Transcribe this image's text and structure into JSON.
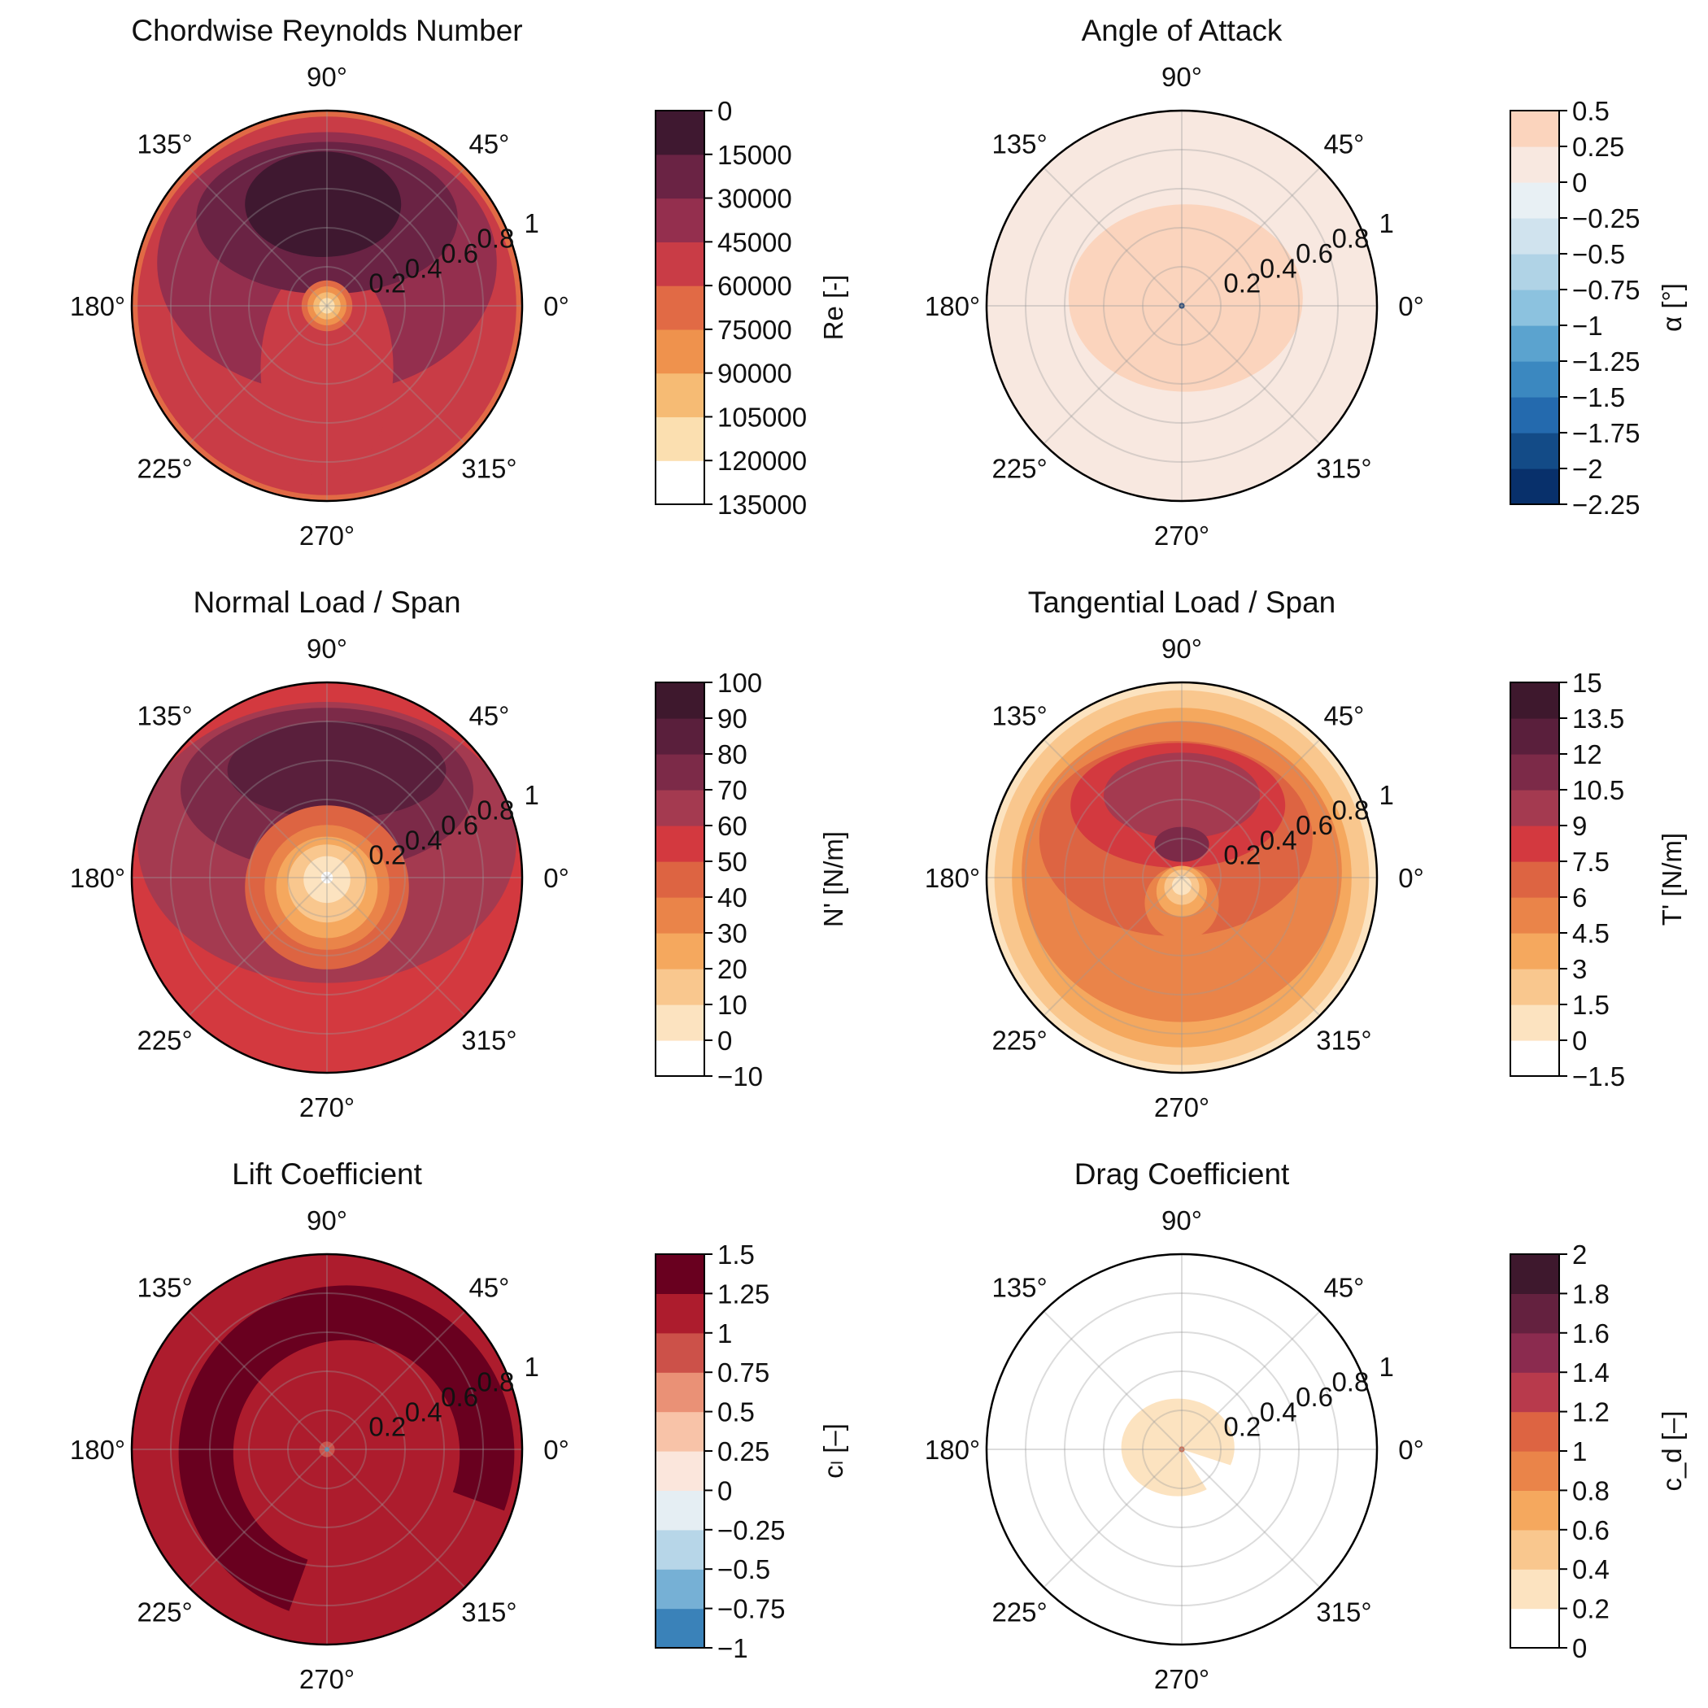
{
  "chart_data": [
    {
      "type": "polar-contour",
      "title": "Chordwise Reynolds Number",
      "angle_ticks": [
        "0°",
        "45°",
        "90°",
        "135°",
        "180°",
        "225°",
        "270°",
        "315°"
      ],
      "radial_ticks": [
        "0.2",
        "0.4",
        "0.6",
        "0.8",
        "1"
      ],
      "radial_values": [
        0.2,
        0.4,
        0.6,
        0.8,
        1.0
      ],
      "colorbar": {
        "label": "Re [-]",
        "ticks": [
          "0",
          "15000",
          "30000",
          "45000",
          "60000",
          "75000",
          "90000",
          "105000",
          "120000",
          "135000"
        ],
        "levels": [
          0,
          15000,
          30000,
          45000,
          60000,
          75000,
          90000,
          105000,
          120000,
          135000
        ],
        "colors": [
          "#ffffff",
          "#fbdfb0",
          "#f6bb74",
          "#ef924d",
          "#e16a45",
          "#c93c46",
          "#942f4e",
          "#6a2344",
          "#3f1830"
        ]
      },
      "regions": [
        {
          "level": 60000,
          "shape": "disk",
          "cx": 0,
          "cy": 0,
          "r": 1.0
        },
        {
          "level": 75000,
          "shape": "disk",
          "cx": 0,
          "cy": 0,
          "r": 0.97
        },
        {
          "level": 90000,
          "shape": "ellipse",
          "cx": 0,
          "cy": 0.22,
          "rx": 0.87,
          "ry": 0.67
        },
        {
          "level": 75000,
          "shape": "ellipse",
          "cx": 0,
          "cy": -0.32,
          "rx": 0.34,
          "ry": 0.56
        },
        {
          "level": 105000,
          "shape": "ellipse",
          "cx": 0,
          "cy": 0.45,
          "rx": 0.67,
          "ry": 0.39
        },
        {
          "level": 120000,
          "shape": "ellipse",
          "cx": -0.02,
          "cy": 0.52,
          "rx": 0.4,
          "ry": 0.27
        },
        {
          "level": 60000,
          "shape": "disk",
          "cx": 0,
          "cy": 0,
          "r": 0.13
        },
        {
          "level": 45000,
          "shape": "disk",
          "cx": 0,
          "cy": 0,
          "r": 0.1
        },
        {
          "level": 30000,
          "shape": "disk",
          "cx": 0,
          "cy": 0,
          "r": 0.07
        },
        {
          "level": 15000,
          "shape": "disk",
          "cx": 0,
          "cy": 0,
          "r": 0.04
        }
      ]
    },
    {
      "type": "polar-contour",
      "title": "Angle of Attack",
      "angle_ticks": [
        "0°",
        "45°",
        "90°",
        "135°",
        "180°",
        "225°",
        "270°",
        "315°"
      ],
      "radial_ticks": [
        "0.2",
        "0.4",
        "0.6",
        "0.8",
        "1"
      ],
      "radial_values": [
        0.2,
        0.4,
        0.6,
        0.8,
        1.0
      ],
      "colorbar": {
        "label": "α [°]",
        "ticks": [
          "0.5",
          "0.25",
          "0",
          "−0.25",
          "−0.5",
          "−0.75",
          "−1",
          "−1.25",
          "−1.5",
          "−1.75",
          "−2",
          "−2.25"
        ],
        "levels": [
          -2.25,
          -2.0,
          -1.75,
          -1.5,
          -1.25,
          -1.0,
          -0.75,
          -0.5,
          -0.25,
          0,
          0.25,
          0.5
        ],
        "colors": [
          "#08306b",
          "#134b87",
          "#246aae",
          "#3b88c0",
          "#5ba3cf",
          "#8cc2df",
          "#b0d3e6",
          "#d0e3ee",
          "#e8f0f4",
          "#f8e8e0",
          "#fbd4bd"
        ]
      },
      "regions": [
        {
          "level": 0,
          "shape": "disk",
          "cx": 0,
          "cy": 0,
          "r": 1.0
        },
        {
          "level": 0.25,
          "shape": "ellipse",
          "cx": 0.02,
          "cy": 0.04,
          "rx": 0.6,
          "ry": 0.48
        },
        {
          "level": -2.25,
          "shape": "disk",
          "cx": 0,
          "cy": 0,
          "r": 0.015
        }
      ]
    },
    {
      "type": "polar-contour",
      "title": "Normal Load / Span",
      "angle_ticks": [
        "0°",
        "45°",
        "90°",
        "135°",
        "180°",
        "225°",
        "270°",
        "315°"
      ],
      "radial_ticks": [
        "0.2",
        "0.4",
        "0.6",
        "0.8",
        "1"
      ],
      "radial_values": [
        0.2,
        0.4,
        0.6,
        0.8,
        1.0
      ],
      "colorbar": {
        "label": "N' [N/m]",
        "ticks": [
          "100",
          "90",
          "80",
          "70",
          "60",
          "50",
          "40",
          "30",
          "20",
          "10",
          "0",
          "−10"
        ],
        "levels": [
          -10,
          0,
          10,
          20,
          30,
          40,
          50,
          60,
          70,
          80,
          90,
          100
        ],
        "colors": [
          "#ffffff",
          "#fce3c0",
          "#f9c78e",
          "#f5a85e",
          "#ea8449",
          "#dd6442",
          "#d3393f",
          "#a43a50",
          "#7c2a48",
          "#5a1f3c",
          "#3e182d"
        ]
      },
      "regions": [
        {
          "level": 50,
          "shape": "disk",
          "cx": 0,
          "cy": 0,
          "r": 1.0
        },
        {
          "level": 60,
          "shape": "ellipse",
          "cx": 0,
          "cy": 0.18,
          "rx": 0.97,
          "ry": 0.72
        },
        {
          "level": 70,
          "shape": "ellipse",
          "cx": 0,
          "cy": 0.45,
          "rx": 0.75,
          "ry": 0.42
        },
        {
          "level": 80,
          "shape": "ellipse",
          "cx": 0.05,
          "cy": 0.55,
          "rx": 0.56,
          "ry": 0.25
        },
        {
          "level": 40,
          "shape": "disk",
          "cx": 0,
          "cy": -0.05,
          "r": 0.42
        },
        {
          "level": 30,
          "shape": "disk",
          "cx": 0,
          "cy": -0.05,
          "r": 0.32
        },
        {
          "level": 20,
          "shape": "disk",
          "cx": 0,
          "cy": -0.05,
          "r": 0.26
        },
        {
          "level": 10,
          "shape": "disk",
          "cx": 0,
          "cy": -0.03,
          "r": 0.2
        },
        {
          "level": 0,
          "shape": "disk",
          "cx": 0,
          "cy": -0.01,
          "r": 0.12
        },
        {
          "level": -10,
          "shape": "disk",
          "cx": 0,
          "cy": 0,
          "r": 0.03
        }
      ]
    },
    {
      "type": "polar-contour",
      "title": "Tangential Load / Span",
      "angle_ticks": [
        "0°",
        "45°",
        "90°",
        "135°",
        "180°",
        "225°",
        "270°",
        "315°"
      ],
      "radial_ticks": [
        "0.2",
        "0.4",
        "0.6",
        "0.8",
        "1"
      ],
      "radial_values": [
        0.2,
        0.4,
        0.6,
        0.8,
        1.0
      ],
      "colorbar": {
        "label": "T' [N/m]",
        "ticks": [
          "15",
          "13.5",
          "12",
          "10.5",
          "9",
          "7.5",
          "6",
          "4.5",
          "3",
          "1.5",
          "0",
          "−1.5"
        ],
        "levels": [
          -1.5,
          0,
          1.5,
          3,
          4.5,
          6,
          7.5,
          9,
          10.5,
          12,
          13.5,
          15
        ],
        "colors": [
          "#ffffff",
          "#fce3c0",
          "#f9c78e",
          "#f5a85e",
          "#ea8449",
          "#dd6442",
          "#d3393f",
          "#a43a50",
          "#7c2a48",
          "#5a1f3c",
          "#3e182d"
        ]
      },
      "regions": [
        {
          "level": 0,
          "shape": "disk",
          "cx": 0,
          "cy": 0,
          "r": 1.0
        },
        {
          "level": 1.5,
          "shape": "disk",
          "cx": 0,
          "cy": 0,
          "r": 0.96
        },
        {
          "level": 3,
          "shape": "disk",
          "cx": 0,
          "cy": 0,
          "r": 0.87
        },
        {
          "level": 4.5,
          "shape": "ellipse",
          "cx": 0,
          "cy": 0.03,
          "rx": 0.82,
          "ry": 0.77
        },
        {
          "level": 6,
          "shape": "ellipse",
          "cx": -0.03,
          "cy": 0.2,
          "rx": 0.7,
          "ry": 0.5
        },
        {
          "level": 7.5,
          "shape": "ellipse",
          "cx": -0.02,
          "cy": 0.37,
          "rx": 0.55,
          "ry": 0.32
        },
        {
          "level": 9,
          "shape": "ellipse",
          "cx": 0,
          "cy": 0.42,
          "rx": 0.4,
          "ry": 0.22
        },
        {
          "level": 10.5,
          "shape": "ellipse",
          "cx": 0,
          "cy": 0.17,
          "rx": 0.14,
          "ry": 0.09
        },
        {
          "level": 4.5,
          "shape": "disk",
          "cx": 0,
          "cy": -0.13,
          "r": 0.19
        },
        {
          "level": 3,
          "shape": "disk",
          "cx": 0,
          "cy": -0.07,
          "r": 0.13
        },
        {
          "level": 1.5,
          "shape": "disk",
          "cx": 0,
          "cy": -0.05,
          "r": 0.09
        },
        {
          "level": 0,
          "shape": "disk",
          "cx": 0,
          "cy": -0.04,
          "r": 0.05
        }
      ]
    },
    {
      "type": "polar-contour",
      "title": "Lift Coefficient",
      "angle_ticks": [
        "0°",
        "45°",
        "90°",
        "135°",
        "180°",
        "225°",
        "270°",
        "315°"
      ],
      "radial_ticks": [
        "0.2",
        "0.4",
        "0.6",
        "0.8",
        "1"
      ],
      "radial_values": [
        0.2,
        0.4,
        0.6,
        0.8,
        1.0
      ],
      "colorbar": {
        "label": "cₗ [–]",
        "ticks": [
          "1.5",
          "1.25",
          "1",
          "0.75",
          "0.5",
          "0.25",
          "0",
          "−0.25",
          "−0.5",
          "−0.75",
          "−1"
        ],
        "levels": [
          -1,
          -0.75,
          -0.5,
          -0.25,
          0,
          0.25,
          0.5,
          0.75,
          1,
          1.25,
          1.5
        ],
        "colors": [
          "#3a82b9",
          "#76b0d5",
          "#b7d6e8",
          "#e5eef3",
          "#fbe6dc",
          "#f8c3a8",
          "#ea9176",
          "#cc5149",
          "#ad1c2d",
          "#69001f"
        ]
      },
      "regions": [
        {
          "level": 1,
          "shape": "disk",
          "cx": 0,
          "cy": 0,
          "r": 1.0
        },
        {
          "level": 1.25,
          "shape": "crescent",
          "cx": 0.1,
          "cy": -0.02,
          "r_outer": 0.86,
          "r_inner": 0.58,
          "arc_from_deg": -20,
          "arc_to_deg": 250
        },
        {
          "level": 0.75,
          "shape": "disk",
          "cx": 0,
          "cy": 0,
          "r": 0.04
        },
        {
          "level": -1,
          "shape": "disk",
          "cx": 0,
          "cy": 0,
          "r": 0.012
        }
      ]
    },
    {
      "type": "polar-contour",
      "title": "Drag Coefficient",
      "angle_ticks": [
        "0°",
        "45°",
        "90°",
        "135°",
        "180°",
        "225°",
        "270°",
        "315°"
      ],
      "radial_ticks": [
        "0.2",
        "0.4",
        "0.6",
        "0.8",
        "1"
      ],
      "radial_values": [
        0.2,
        0.4,
        0.6,
        0.8,
        1.0
      ],
      "colorbar": {
        "label": "c_d [–]",
        "ticks": [
          "2",
          "1.8",
          "1.6",
          "1.4",
          "1.2",
          "1",
          "0.8",
          "0.6",
          "0.4",
          "0.2",
          "0"
        ],
        "levels": [
          0,
          0.2,
          0.4,
          0.6,
          0.8,
          1.0,
          1.2,
          1.4,
          1.6,
          1.8,
          2.0
        ],
        "colors": [
          "#ffffff",
          "#fce3c0",
          "#f9c78e",
          "#f5a85e",
          "#ea8449",
          "#dd6442",
          "#b83a4c",
          "#8b2b4f",
          "#64213f",
          "#3e182d"
        ]
      },
      "regions": [
        {
          "level": 0,
          "shape": "disk",
          "cx": 0,
          "cy": 0,
          "r": 1.0
        },
        {
          "level": 0.2,
          "shape": "ellipse",
          "cx": -0.02,
          "cy": 0.01,
          "rx": 0.29,
          "ry": 0.25
        },
        {
          "level": 0,
          "shape": "wedge",
          "cx": 0,
          "cy": 0,
          "r": 0.3,
          "from_deg": -58,
          "to_deg": -18
        },
        {
          "level": 1.0,
          "shape": "disk",
          "cx": 0,
          "cy": 0,
          "r": 0.015
        }
      ]
    }
  ]
}
